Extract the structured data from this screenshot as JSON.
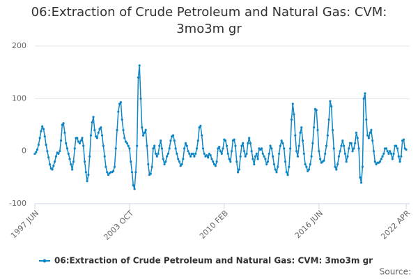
{
  "chart_data": {
    "type": "line",
    "title": "06:Extraction of Crude Petroleum and Natural Gas: CVM: 3mo3m gr",
    "source_label": "Source:",
    "categories": [
      "1997 JUN",
      null,
      null,
      null,
      null,
      null,
      null,
      null,
      null,
      null,
      null,
      null,
      null,
      null,
      null,
      null,
      null,
      null,
      null,
      null,
      null,
      null,
      null,
      null,
      null,
      null,
      null,
      null,
      null,
      null,
      null,
      null,
      null,
      null,
      null,
      null,
      null,
      null,
      null,
      null,
      null,
      null,
      null,
      null,
      null,
      null,
      null,
      null,
      null,
      null,
      null,
      null,
      null,
      null,
      null,
      null,
      null,
      null,
      null,
      null,
      null,
      null,
      null,
      null,
      null,
      null,
      null,
      null,
      null,
      null,
      null,
      null,
      null,
      null,
      null,
      null,
      "2003 OCT",
      null,
      null,
      null,
      null,
      null,
      null,
      null,
      null,
      null,
      null,
      null,
      null,
      null,
      null,
      null,
      null,
      null,
      null,
      null,
      null,
      null,
      null,
      null,
      null,
      null,
      null,
      null,
      null,
      null,
      null,
      null,
      null,
      null,
      null,
      null,
      null,
      null,
      null,
      null,
      null,
      null,
      null,
      null,
      null,
      null,
      null,
      null,
      null,
      null,
      null,
      null,
      null,
      null,
      null,
      null,
      null,
      null,
      null,
      null,
      null,
      null,
      null,
      null,
      null,
      null,
      null,
      null,
      null,
      null,
      null,
      null,
      null,
      null,
      null,
      null,
      "2010 FEB",
      null,
      null,
      null,
      null,
      null,
      null,
      null,
      null,
      null,
      null,
      null,
      null,
      null,
      null,
      null,
      null,
      null,
      null,
      null,
      null,
      null,
      null,
      null,
      null,
      null,
      null,
      null,
      null,
      null,
      null,
      null,
      null,
      null,
      null,
      null,
      null,
      null,
      null,
      null,
      null,
      null,
      null,
      null,
      null,
      null,
      null,
      null,
      null,
      null,
      null,
      null,
      null,
      null,
      null,
      null,
      null,
      null,
      null,
      null,
      null,
      null,
      null,
      null,
      null,
      null,
      null,
      null,
      null,
      null,
      null,
      null,
      null,
      null,
      null,
      null,
      "2016 JUN",
      null,
      null,
      null,
      null,
      null,
      null,
      null,
      null,
      null,
      null,
      null,
      null,
      null,
      null,
      null,
      null,
      null,
      null,
      null,
      null,
      null,
      null,
      null,
      null,
      null,
      null,
      null,
      null,
      null,
      null,
      null,
      null,
      null,
      null,
      null,
      null,
      null,
      null,
      null,
      null,
      null,
      null,
      null,
      null,
      null,
      null,
      null,
      null,
      null,
      null,
      null,
      null,
      null,
      null,
      null,
      null,
      null,
      null,
      null,
      null,
      null,
      null,
      null,
      null,
      null,
      null,
      null,
      null,
      null,
      "2022 APR"
    ],
    "series": [
      {
        "name": "06:Extraction of Crude Petroleum and Natural Gas: CVM: 3mo3m gr",
        "color": "#0e86c6",
        "values": [
          -5,
          -2,
          3,
          12,
          25,
          38,
          47,
          42,
          28,
          12,
          0,
          -12,
          -25,
          -33,
          -35,
          -28,
          -20,
          -10,
          -3,
          -5,
          0,
          20,
          50,
          53,
          35,
          15,
          5,
          -5,
          -15,
          -25,
          -35,
          -20,
          5,
          25,
          25,
          18,
          15,
          20,
          25,
          10,
          -20,
          -40,
          -57,
          -45,
          -10,
          30,
          55,
          65,
          40,
          28,
          25,
          35,
          42,
          45,
          30,
          10,
          -10,
          -30,
          -40,
          -45,
          -42,
          -40,
          -40,
          -38,
          -30,
          5,
          40,
          75,
          90,
          93,
          60,
          40,
          25,
          18,
          15,
          10,
          5,
          -20,
          -40,
          -65,
          -72,
          -40,
          10,
          140,
          163,
          100,
          45,
          30,
          35,
          40,
          10,
          -25,
          -45,
          -43,
          -30,
          5,
          10,
          -5,
          -10,
          -5,
          10,
          20,
          5,
          -15,
          -25,
          -20,
          -10,
          -5,
          5,
          20,
          28,
          30,
          20,
          5,
          -5,
          -15,
          -20,
          -28,
          -25,
          -15,
          5,
          15,
          10,
          0,
          -5,
          -10,
          -5,
          -5,
          -10,
          -5,
          5,
          20,
          45,
          48,
          30,
          5,
          -5,
          -10,
          -8,
          -12,
          -5,
          -8,
          -15,
          -20,
          -25,
          -28,
          -20,
          5,
          8,
          0,
          -5,
          5,
          22,
          20,
          10,
          -5,
          -15,
          -20,
          0,
          20,
          22,
          10,
          -20,
          -40,
          -35,
          -10,
          10,
          15,
          0,
          -10,
          -5,
          15,
          25,
          15,
          0,
          -15,
          -25,
          -10,
          -5,
          -15,
          5,
          3,
          5,
          -5,
          -10,
          -15,
          -25,
          -20,
          -5,
          10,
          5,
          -10,
          -25,
          -35,
          -40,
          -30,
          -5,
          10,
          20,
          15,
          5,
          -20,
          -40,
          -45,
          -30,
          5,
          60,
          90,
          70,
          30,
          0,
          -10,
          10,
          35,
          45,
          20,
          -5,
          -25,
          -30,
          -38,
          -35,
          -25,
          -10,
          15,
          45,
          80,
          78,
          40,
          0,
          -15,
          -22,
          -20,
          -18,
          -5,
          10,
          30,
          60,
          95,
          85,
          40,
          5,
          -30,
          -35,
          -25,
          -10,
          0,
          10,
          20,
          10,
          -5,
          -20,
          -10,
          5,
          15,
          15,
          0,
          5,
          15,
          35,
          25,
          5,
          -50,
          -60,
          -30,
          100,
          110,
          60,
          30,
          25,
          35,
          40,
          20,
          0,
          -20,
          -25,
          -22,
          -22,
          -20,
          -15,
          -10,
          -5,
          5,
          5,
          0,
          -5,
          0,
          -5,
          -15,
          -5,
          10,
          10,
          5,
          -10,
          -20,
          -10,
          20,
          22,
          5,
          3
        ]
      }
    ],
    "ylim": [
      -100,
      200
    ],
    "yticks": [
      -100,
      0,
      100,
      200
    ],
    "grid": true
  }
}
